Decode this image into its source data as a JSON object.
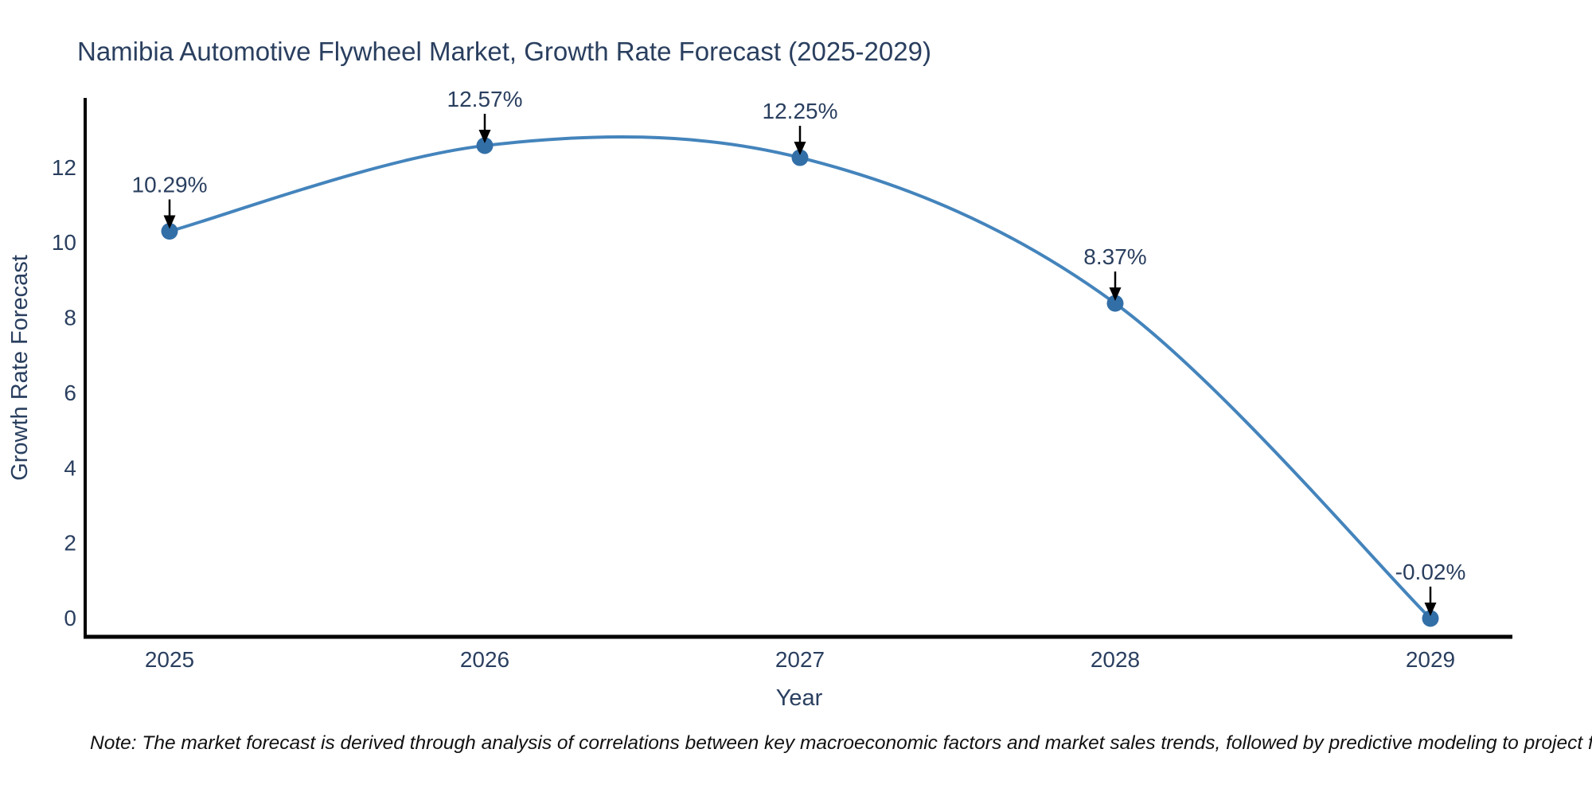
{
  "title": "Namibia Automotive Flywheel Market, Growth Rate Forecast (2025-2029)",
  "note": "Note: The market forecast is derived through analysis of correlations between key macroeconomic factors and market sales trends, followed by predictive modeling to project future sales",
  "chart_data": {
    "type": "line",
    "title": "Namibia Automotive Flywheel Market, Growth Rate Forecast (2025-2029)",
    "xlabel": "Year",
    "ylabel": "Growth Rate Forecast",
    "categories": [
      "2025",
      "2026",
      "2027",
      "2028",
      "2029"
    ],
    "series": [
      {
        "name": "Growth Rate Forecast",
        "values": [
          10.29,
          12.57,
          12.25,
          8.37,
          -0.02
        ]
      }
    ],
    "point_labels": [
      "10.29%",
      "12.57%",
      "12.25%",
      "8.37%",
      "-0.02%"
    ],
    "y_ticks": [
      0,
      2,
      4,
      6,
      8,
      10,
      12
    ],
    "ylim": [
      -0.51,
      13.8
    ],
    "line_shape": "spline",
    "grid": false,
    "legend_position": "none",
    "colors": {
      "line": "#4484bc",
      "marker": "#336fa7",
      "arrow": "#000000",
      "axis": "#000000",
      "text": "#2a3f5f"
    }
  }
}
